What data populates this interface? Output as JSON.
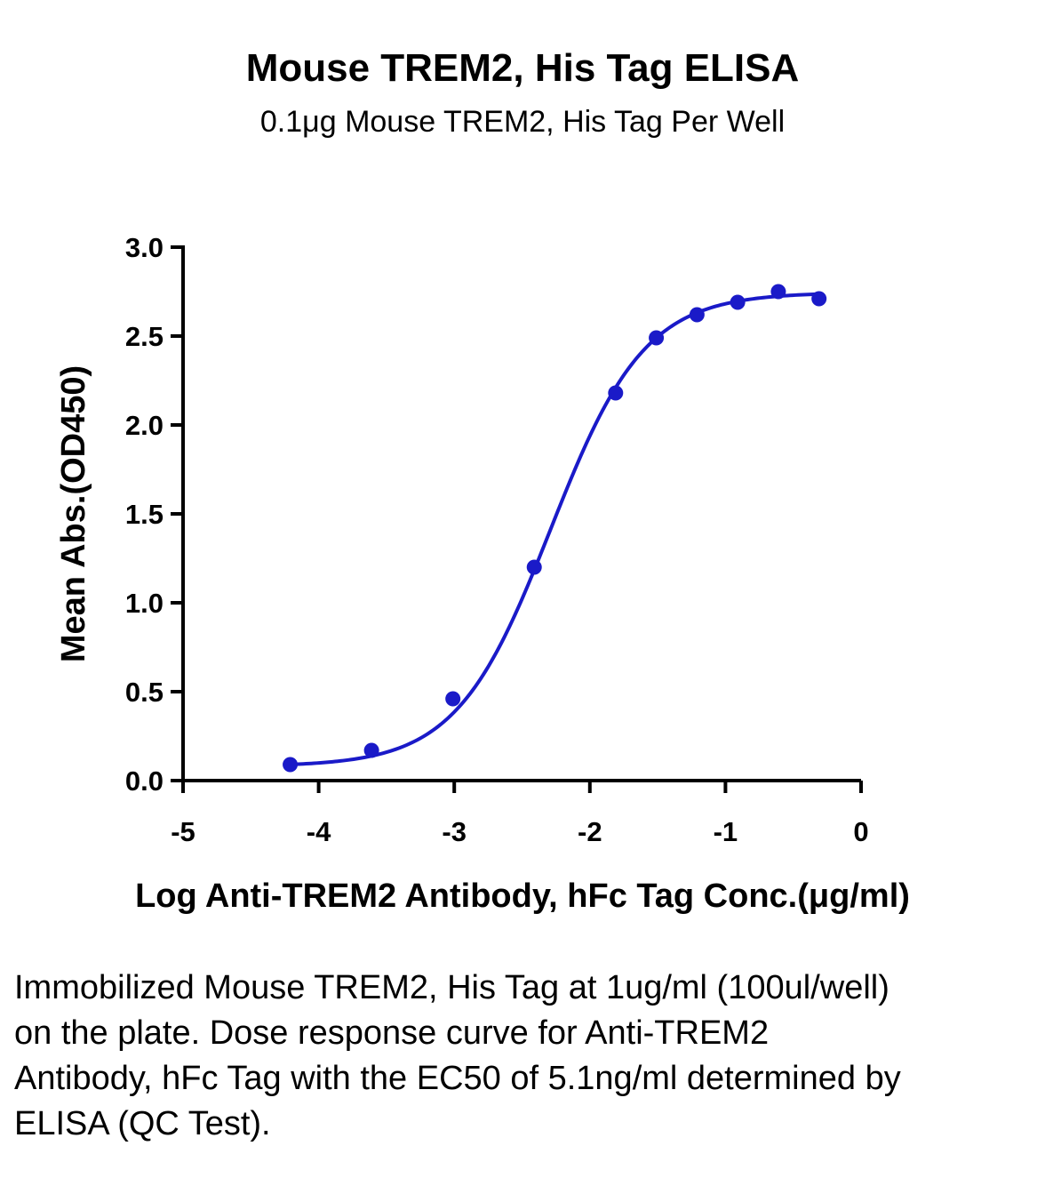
{
  "chart_data": {
    "type": "scatter",
    "title": "Mouse TREM2, His Tag ELISA",
    "subtitle": "0.1μg Mouse TREM2, His Tag Per Well",
    "xlabel": "Log Anti-TREM2 Antibody, hFc Tag Conc.(μg/ml)",
    "ylabel": "Mean Abs.(OD450)",
    "xlim": [
      -5,
      0
    ],
    "ylim": [
      0,
      3.0
    ],
    "x_ticks": [
      "-5",
      "-4",
      "-3",
      "-2",
      "-1",
      "0"
    ],
    "y_ticks": [
      "0.0",
      "0.5",
      "1.0",
      "1.5",
      "2.0",
      "2.5",
      "3.0"
    ],
    "grid": false,
    "series": [
      {
        "x": [
          -4.21,
          -3.61,
          -3.01,
          -2.41,
          -1.81,
          -1.51,
          -1.21,
          -0.91,
          -0.61,
          -0.31
        ],
        "y": [
          0.09,
          0.17,
          0.46,
          1.2,
          2.18,
          2.49,
          2.62,
          2.69,
          2.75,
          2.71
        ],
        "color": "#1a1ac8",
        "fit": "4PL sigmoid curve"
      }
    ]
  },
  "caption": "Immobilized Mouse TREM2, His Tag at 1ug/ml (100ul/well) on the plate. Dose response curve for Anti-TREM2 Antibody, hFc Tag with the EC50 of 5.1ng/ml determined by ELISA (QC Test)."
}
